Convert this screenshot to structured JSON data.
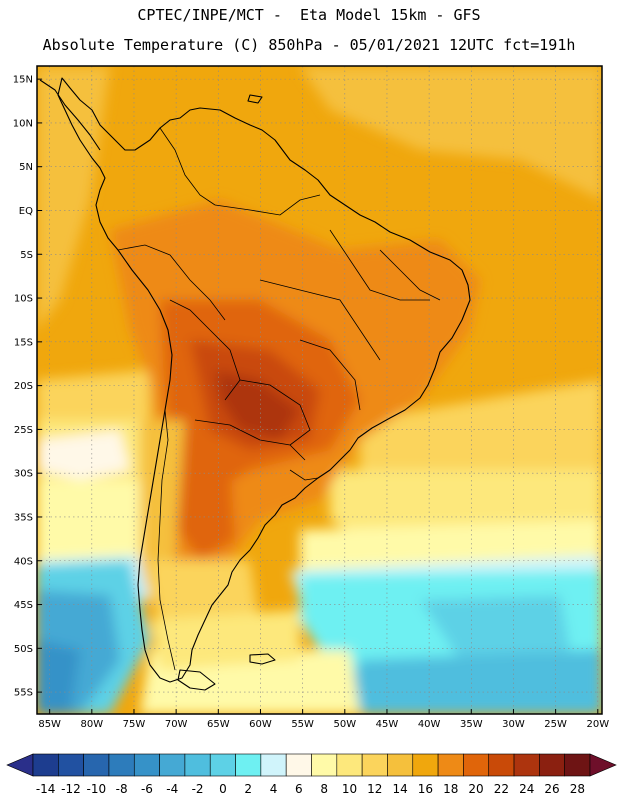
{
  "title": {
    "line1": "CPTEC/INPE/MCT -  Eta Model 15km - GFS",
    "line2": "Absolute Temperature (C) 850hPa - 05/01/2021 12UTC fct=191h"
  },
  "axes": {
    "lat_labels": [
      "15N",
      "10N",
      "5N",
      "EQ",
      "5S",
      "10S",
      "15S",
      "20S",
      "25S",
      "30S",
      "35S",
      "40S",
      "45S",
      "50S",
      "55S"
    ],
    "lat_values": [
      15,
      10,
      5,
      0,
      -5,
      -10,
      -15,
      -20,
      -25,
      -30,
      -35,
      -40,
      -45,
      -50,
      -55
    ],
    "lon_labels": [
      "85W",
      "80W",
      "75W",
      "70W",
      "65W",
      "60W",
      "55W",
      "50W",
      "45W",
      "40W",
      "35W",
      "30W",
      "25W",
      "20W"
    ],
    "lon_values": [
      -85,
      -80,
      -75,
      -70,
      -65,
      -60,
      -55,
      -50,
      -45,
      -40,
      -35,
      -30,
      -25,
      -20
    ]
  },
  "colorbar": {
    "labels": [
      "-14",
      "-12",
      "-10",
      "-8",
      "-6",
      "-4",
      "-2",
      "0",
      "2",
      "4",
      "6",
      "8",
      "10",
      "12",
      "14",
      "16",
      "18",
      "20",
      "22",
      "24",
      "26",
      "28"
    ],
    "colors": [
      "#1d3d8f",
      "#2151a1",
      "#2766ae",
      "#2d7cbb",
      "#3692c8",
      "#45a9d4",
      "#4fbede",
      "#5dd1e6",
      "#6ef0f2",
      "#d0f4fb",
      "#fff8e8",
      "#fffaa8",
      "#fde87c",
      "#fbd45c",
      "#f5c03c",
      "#f0a70d",
      "#ee8a16",
      "#e0650a",
      "#c94a08",
      "#ad340e",
      "#8b2010",
      "#6e1414"
    ],
    "left_arrow_color": "#2a2f8a",
    "right_arrow_color": "#6e0f2a"
  },
  "field_colors": {
    "ocean_base": "#f0a70d",
    "warm1": "#ee8a16",
    "warm2": "#e0650a",
    "warm3": "#c94a08",
    "hot": "#ad340e",
    "mild": "#f5c03c",
    "light": "#fbd45c",
    "pale": "#fde87c",
    "cream": "#fffaa8",
    "white": "#fff8e8",
    "icy": "#d0f4fb",
    "cyan": "#6ef0f2",
    "cyan2": "#5dd1e6",
    "blue1": "#4fbede",
    "blue2": "#45a9d4",
    "blue3": "#3692c8"
  }
}
